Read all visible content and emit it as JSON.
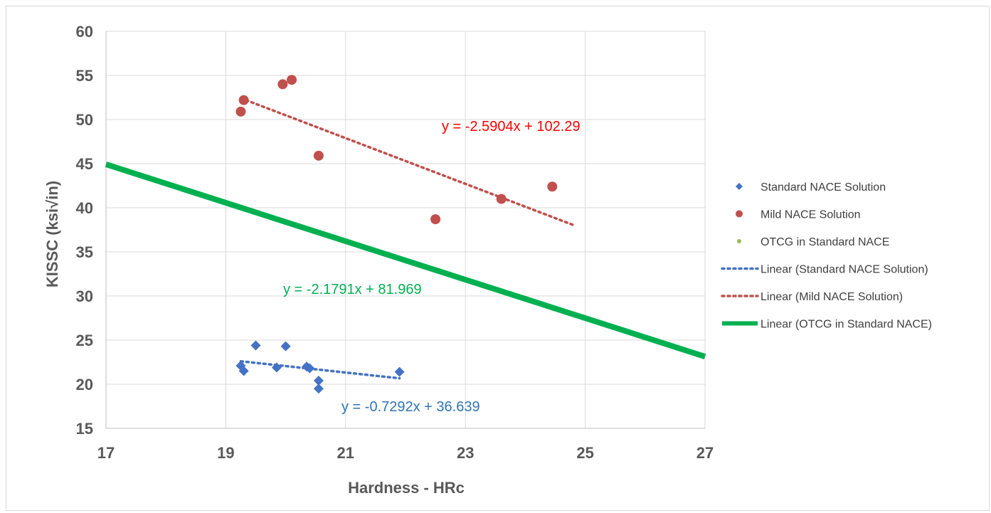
{
  "chart_data": {
    "type": "scatter",
    "title": "",
    "xlabel": "Hardness - HRc",
    "ylabel": "KISSC (ksi√in)",
    "xlim": [
      17,
      27
    ],
    "ylim": [
      15,
      60
    ],
    "xticks": [
      17,
      19,
      21,
      23,
      25,
      27
    ],
    "yticks": [
      15,
      20,
      25,
      30,
      35,
      40,
      45,
      50,
      55,
      60
    ],
    "grid": true,
    "legend_position": "right",
    "series": [
      {
        "name": "Standard NACE Solution",
        "marker": "diamond",
        "color": "#4472c4",
        "points": [
          {
            "x": 19.25,
            "y": 22.1
          },
          {
            "x": 19.3,
            "y": 21.5
          },
          {
            "x": 19.5,
            "y": 24.4
          },
          {
            "x": 19.85,
            "y": 21.9
          },
          {
            "x": 20.0,
            "y": 24.3
          },
          {
            "x": 20.35,
            "y": 22.0
          },
          {
            "x": 20.4,
            "y": 21.8
          },
          {
            "x": 20.55,
            "y": 20.4
          },
          {
            "x": 20.55,
            "y": 19.5
          },
          {
            "x": 21.9,
            "y": 21.4
          }
        ]
      },
      {
        "name": "Mild NACE Solution",
        "marker": "circle",
        "color": "#c0504d",
        "points": [
          {
            "x": 19.25,
            "y": 50.9
          },
          {
            "x": 19.3,
            "y": 52.2
          },
          {
            "x": 19.95,
            "y": 54.0
          },
          {
            "x": 20.1,
            "y": 54.5
          },
          {
            "x": 20.55,
            "y": 45.9
          },
          {
            "x": 22.5,
            "y": 38.7
          },
          {
            "x": 23.6,
            "y": 41.0
          },
          {
            "x": 24.45,
            "y": 42.4
          }
        ]
      },
      {
        "name": "OTCG in Standard NACE",
        "marker": "circle-small",
        "color": "#9bbb59",
        "points": []
      }
    ],
    "trendlines": [
      {
        "name": "Linear (Standard NACE Solution)",
        "style": "dotted",
        "color": "#4472c4",
        "slope": -0.7292,
        "intercept": 36.639,
        "x_range": [
          19.25,
          21.9
        ],
        "equation": "y = -0.7292x + 36.639",
        "equation_color": "#2e75b6"
      },
      {
        "name": "Linear (Mild NACE Solution)",
        "style": "dotted",
        "color": "#c0504d",
        "slope": -2.5904,
        "intercept": 102.29,
        "x_range": [
          19.25,
          24.8
        ],
        "equation": "y = -2.5904x + 102.29",
        "equation_color": "#ff0000"
      },
      {
        "name": "Linear (OTCG in Standard NACE)",
        "style": "solid",
        "color": "#00b050",
        "slope": -2.1791,
        "intercept": 81.969,
        "x_range": [
          17,
          27
        ],
        "equation": "y = -2.1791x + 81.969",
        "equation_color": "#00b050"
      }
    ]
  }
}
